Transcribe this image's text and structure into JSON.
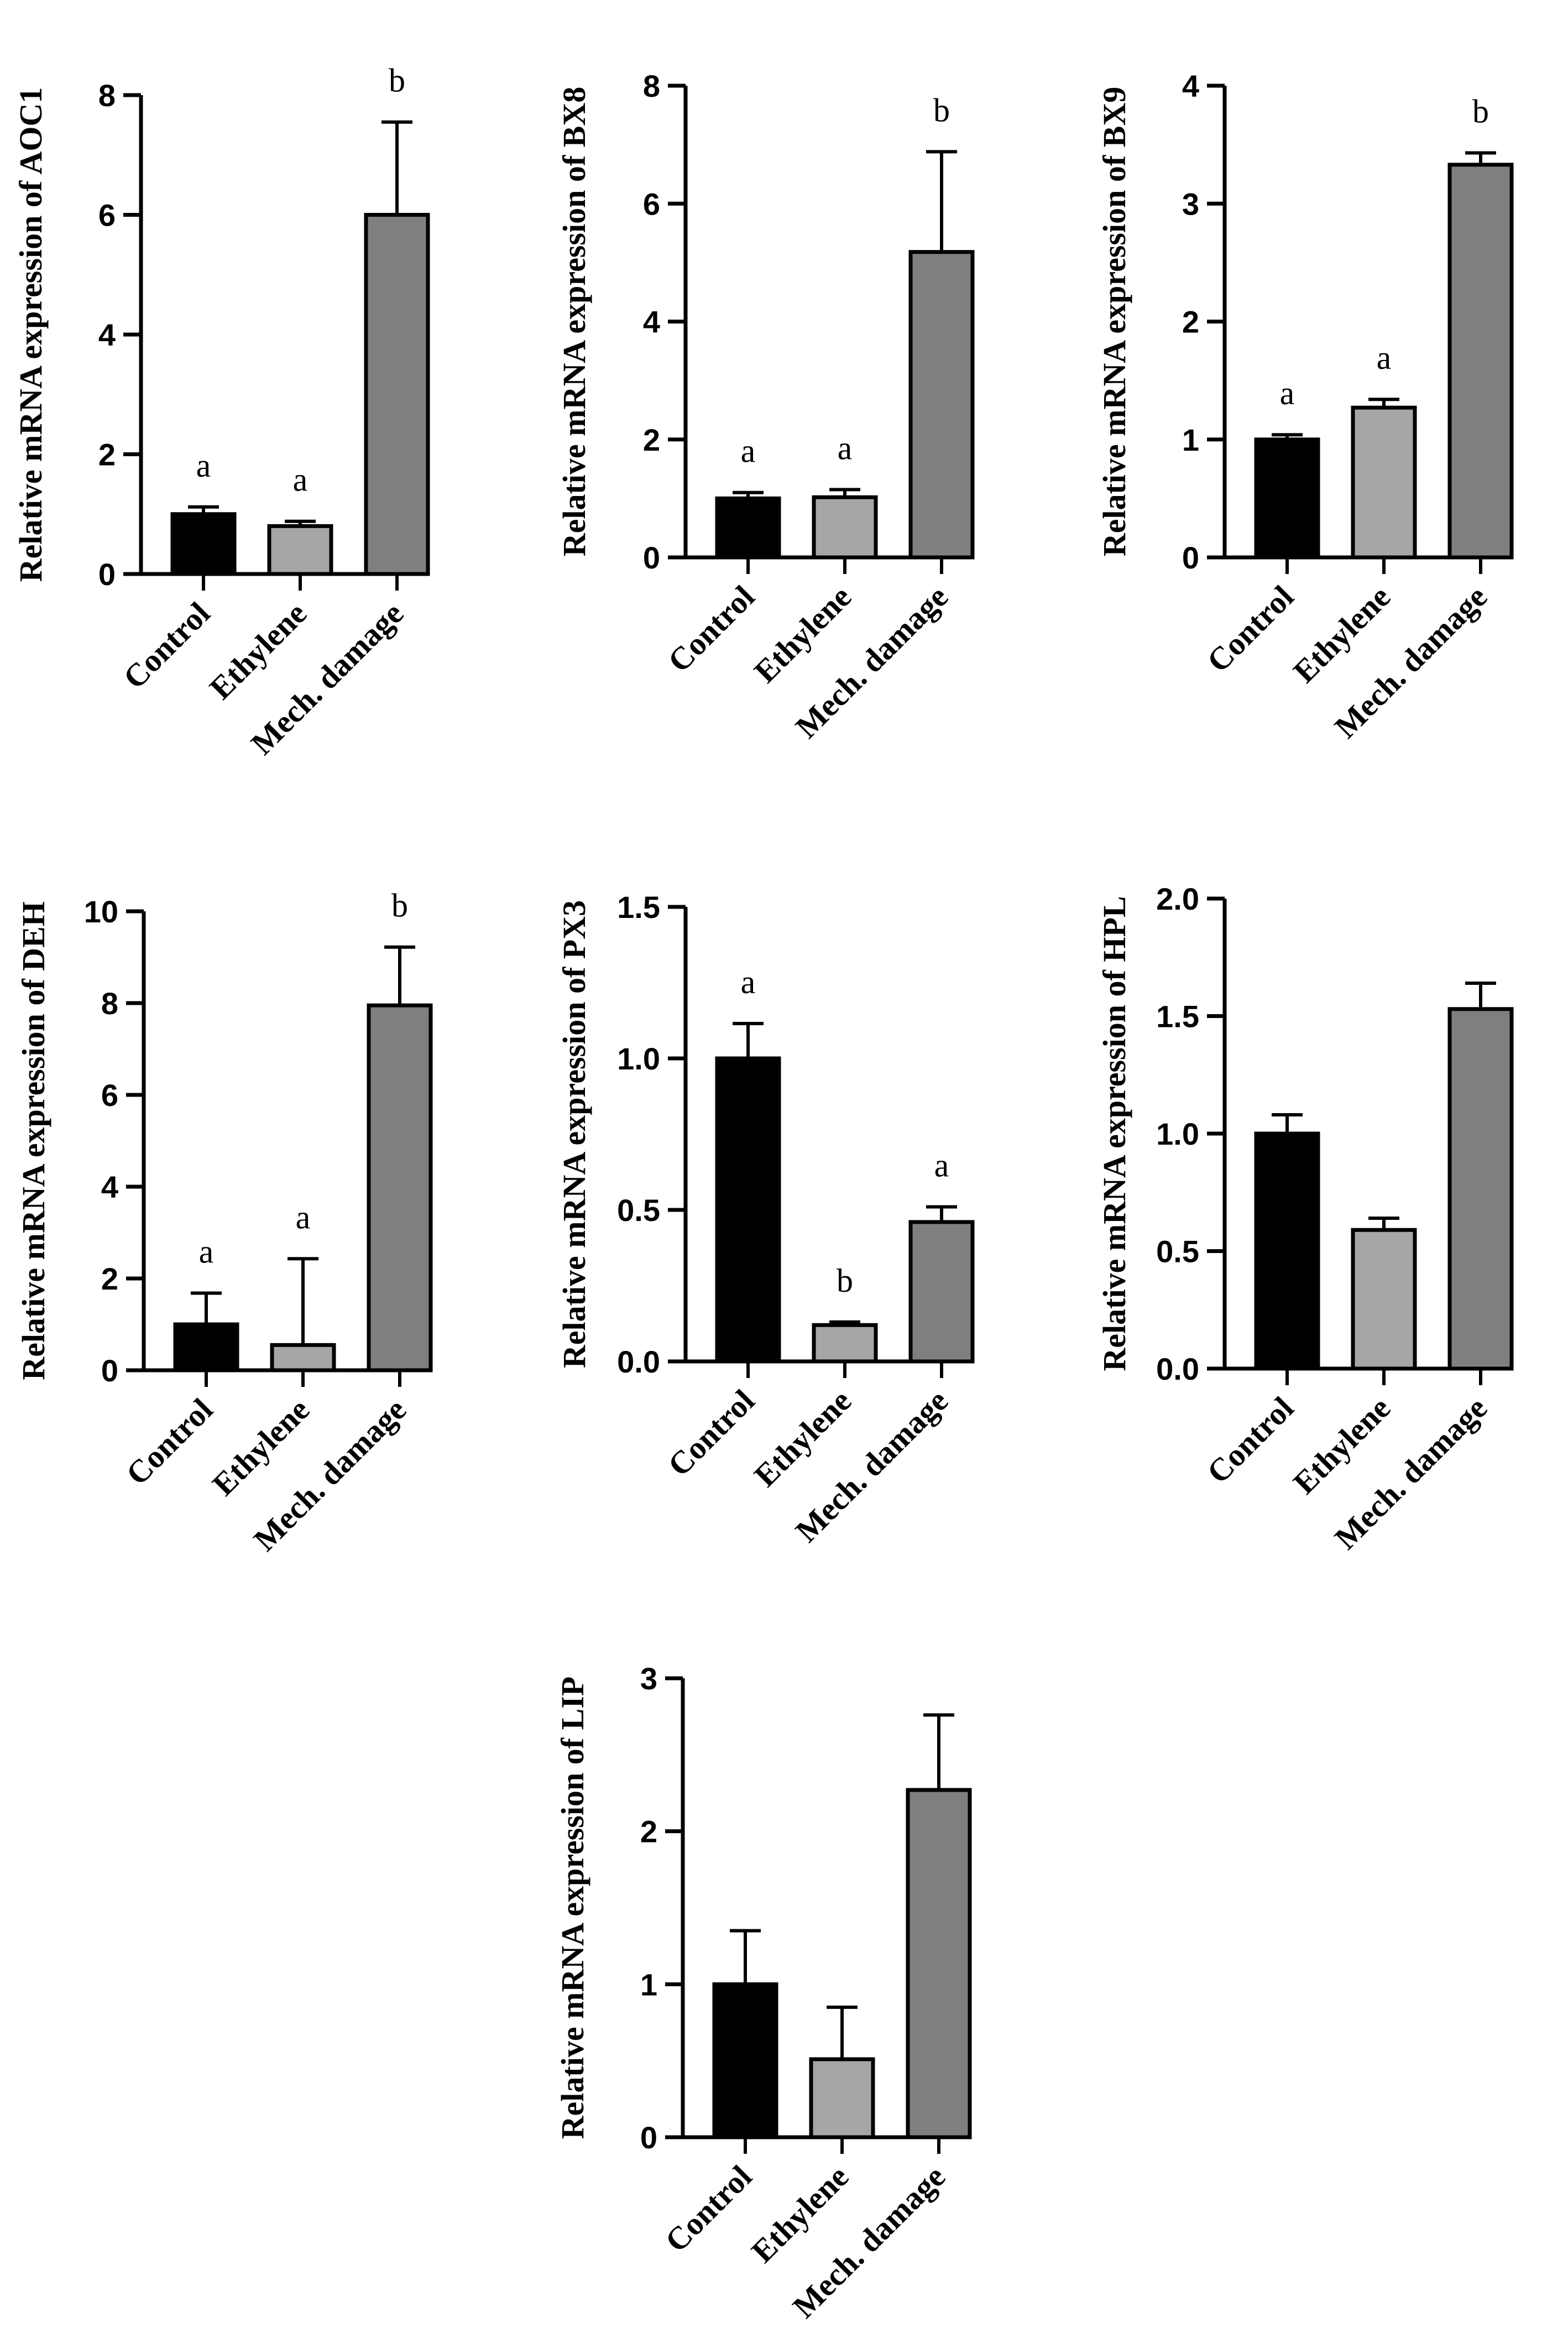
{
  "colors": {
    "control": "#000000",
    "ethylene": "#a6a6a8",
    "mech": "#7f7f7f",
    "axis": "#000000"
  },
  "chart_data": [
    {
      "type": "bar",
      "gene": "AOC1",
      "ylabel": "Relative mRNA expression of AOC1",
      "categories": [
        "Control",
        "Ethylene",
        "Mech. damage"
      ],
      "values": [
        1.0,
        0.8,
        6.0
      ],
      "errors": [
        0.12,
        0.08,
        1.55
      ],
      "sig": [
        "a",
        "a",
        "b"
      ],
      "ylim": [
        0,
        8
      ],
      "yticks": [
        0,
        2,
        4,
        6,
        8
      ],
      "ytick_labels": [
        "0",
        "2",
        "4",
        "6",
        "8"
      ]
    },
    {
      "type": "bar",
      "gene": "BX8",
      "ylabel": "Relative mRNA expression of BX8",
      "categories": [
        "Control",
        "Ethylene",
        "Mech. damage"
      ],
      "values": [
        1.0,
        1.02,
        5.18
      ],
      "errors": [
        0.1,
        0.13,
        1.7
      ],
      "sig": [
        "a",
        "a",
        "b"
      ],
      "ylim": [
        0,
        8
      ],
      "yticks": [
        0,
        2,
        4,
        6,
        8
      ],
      "ytick_labels": [
        "0",
        "2",
        "4",
        "6",
        "8"
      ]
    },
    {
      "type": "bar",
      "gene": "BX9",
      "ylabel": "Relative mRNA expression of BX9",
      "categories": [
        "Control",
        "Ethylene",
        "Mech. damage"
      ],
      "values": [
        1.0,
        1.27,
        3.33
      ],
      "errors": [
        0.04,
        0.07,
        0.1
      ],
      "sig": [
        "a",
        "a",
        "b"
      ],
      "ylim": [
        0,
        4
      ],
      "yticks": [
        0,
        1,
        2,
        3,
        4
      ],
      "ytick_labels": [
        "0",
        "1",
        "2",
        "3",
        "4"
      ]
    },
    {
      "type": "bar",
      "gene": "DEH",
      "ylabel": "Relative mRNA expression of DEH",
      "categories": [
        "Control",
        "Ethylene",
        "Mech. damage"
      ],
      "values": [
        1.0,
        0.55,
        7.95
      ],
      "errors": [
        0.68,
        1.88,
        1.27
      ],
      "sig": [
        "a",
        "a",
        "b"
      ],
      "ylim": [
        0,
        10
      ],
      "yticks": [
        0,
        2,
        4,
        6,
        8,
        10
      ],
      "ytick_labels": [
        "0",
        "2",
        "4",
        "6",
        "8",
        "10"
      ]
    },
    {
      "type": "bar",
      "gene": "PX3",
      "ylabel": "Relative mRNA expression of PX3",
      "categories": [
        "Control",
        "Ethylene",
        "Mech. damage"
      ],
      "values": [
        1.0,
        0.12,
        0.46
      ],
      "errors": [
        0.115,
        0.01,
        0.05
      ],
      "sig": [
        "a",
        "b",
        "a"
      ],
      "ylim": [
        0,
        1.5
      ],
      "yticks": [
        0,
        0.5,
        1.0,
        1.5
      ],
      "ytick_labels": [
        "0.0",
        "0.5",
        "1.0",
        "1.5"
      ]
    },
    {
      "type": "bar",
      "gene": "HPL",
      "ylabel": "Relative mRNA expression of HPL",
      "categories": [
        "Control",
        "Ethylene",
        "Mech. damage"
      ],
      "values": [
        1.0,
        0.59,
        1.53
      ],
      "errors": [
        0.08,
        0.05,
        0.11
      ],
      "sig": [
        "",
        "",
        ""
      ],
      "ylim": [
        0,
        2.0
      ],
      "yticks": [
        0,
        0.5,
        1.0,
        1.5,
        2.0
      ],
      "ytick_labels": [
        "0.0",
        "0.5",
        "1.0",
        "1.5",
        "2.0"
      ]
    },
    {
      "type": "bar",
      "gene": "LIP",
      "ylabel": "Relative mRNA expression of LIP",
      "categories": [
        "Control",
        "Ethylene",
        "Mech. damage"
      ],
      "values": [
        1.0,
        0.51,
        2.27
      ],
      "errors": [
        0.35,
        0.34,
        0.49
      ],
      "sig": [
        "",
        "",
        ""
      ],
      "ylim": [
        0,
        3
      ],
      "yticks": [
        0,
        1,
        2,
        3
      ],
      "ytick_labels": [
        "0",
        "1",
        "2",
        "3"
      ]
    }
  ]
}
